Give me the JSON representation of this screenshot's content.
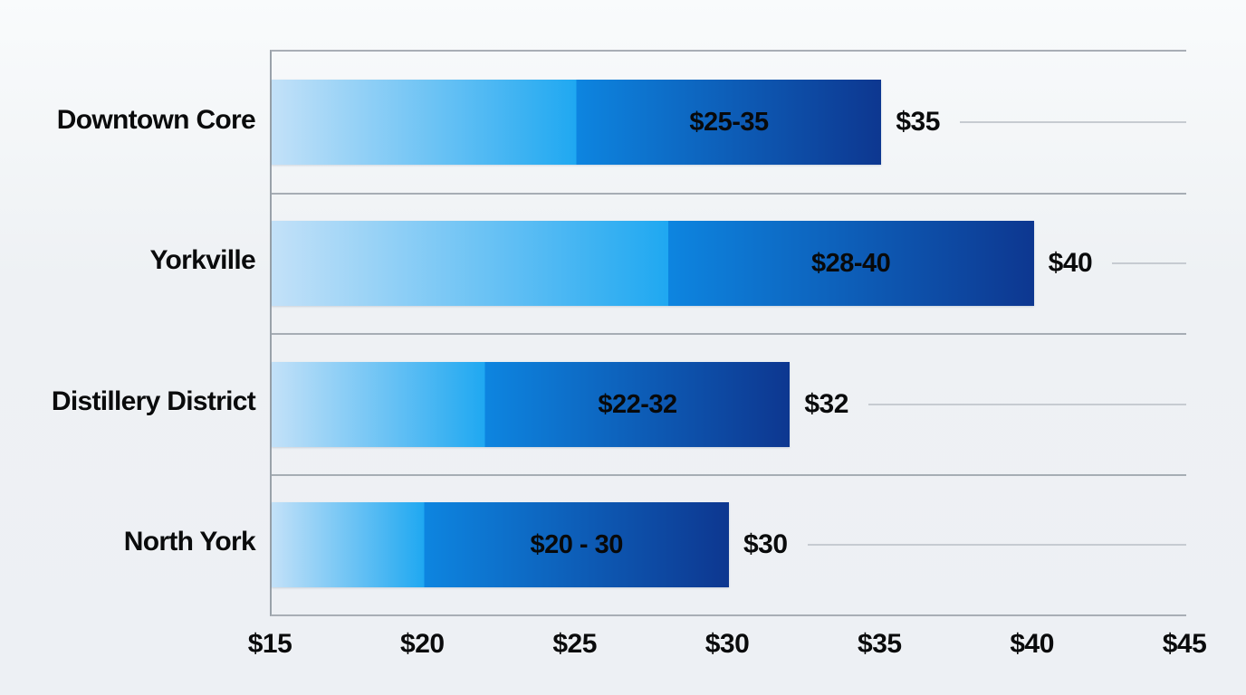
{
  "chart_data": {
    "type": "bar",
    "orientation": "horizontal",
    "title": "",
    "currency_symbol": "$",
    "categories": [
      "Downtown Core",
      "Yorkville",
      "Distillery District",
      "North York"
    ],
    "rows": [
      {
        "label": "Downtown Core",
        "range_min": 25,
        "range_max": 35,
        "bar_label": "$25-35",
        "end_label": "$35"
      },
      {
        "label": "Yorkville",
        "range_min": 28,
        "range_max": 40,
        "bar_label": "$28-40",
        "end_label": "$40"
      },
      {
        "label": "Distillery District",
        "range_min": 22,
        "range_max": 32,
        "bar_label": "$22-32",
        "end_label": "$32"
      },
      {
        "label": "North York",
        "range_min": 20,
        "range_max": 30,
        "bar_label": "$20 - 30",
        "end_label": "$30"
      }
    ],
    "x_axis": {
      "min": 15,
      "max": 45,
      "step": 5,
      "tick_labels": [
        "$15",
        "$20",
        "$25",
        "$30",
        "$35",
        "$40",
        "$45"
      ]
    },
    "legend": "none",
    "grid": "horizontal row separators and leader lines only",
    "colors": {
      "bar_gradient_start": "#c3e1f8",
      "bar_gradient_bright": "#1fa8f1",
      "bar_segment_start": "#0d85e0",
      "bar_gradient_end": "#0d3790",
      "frame_line": "#a6adb4",
      "leader_line": "#c6cbd1",
      "background": "#eef1f4",
      "text": "#08090a"
    }
  }
}
